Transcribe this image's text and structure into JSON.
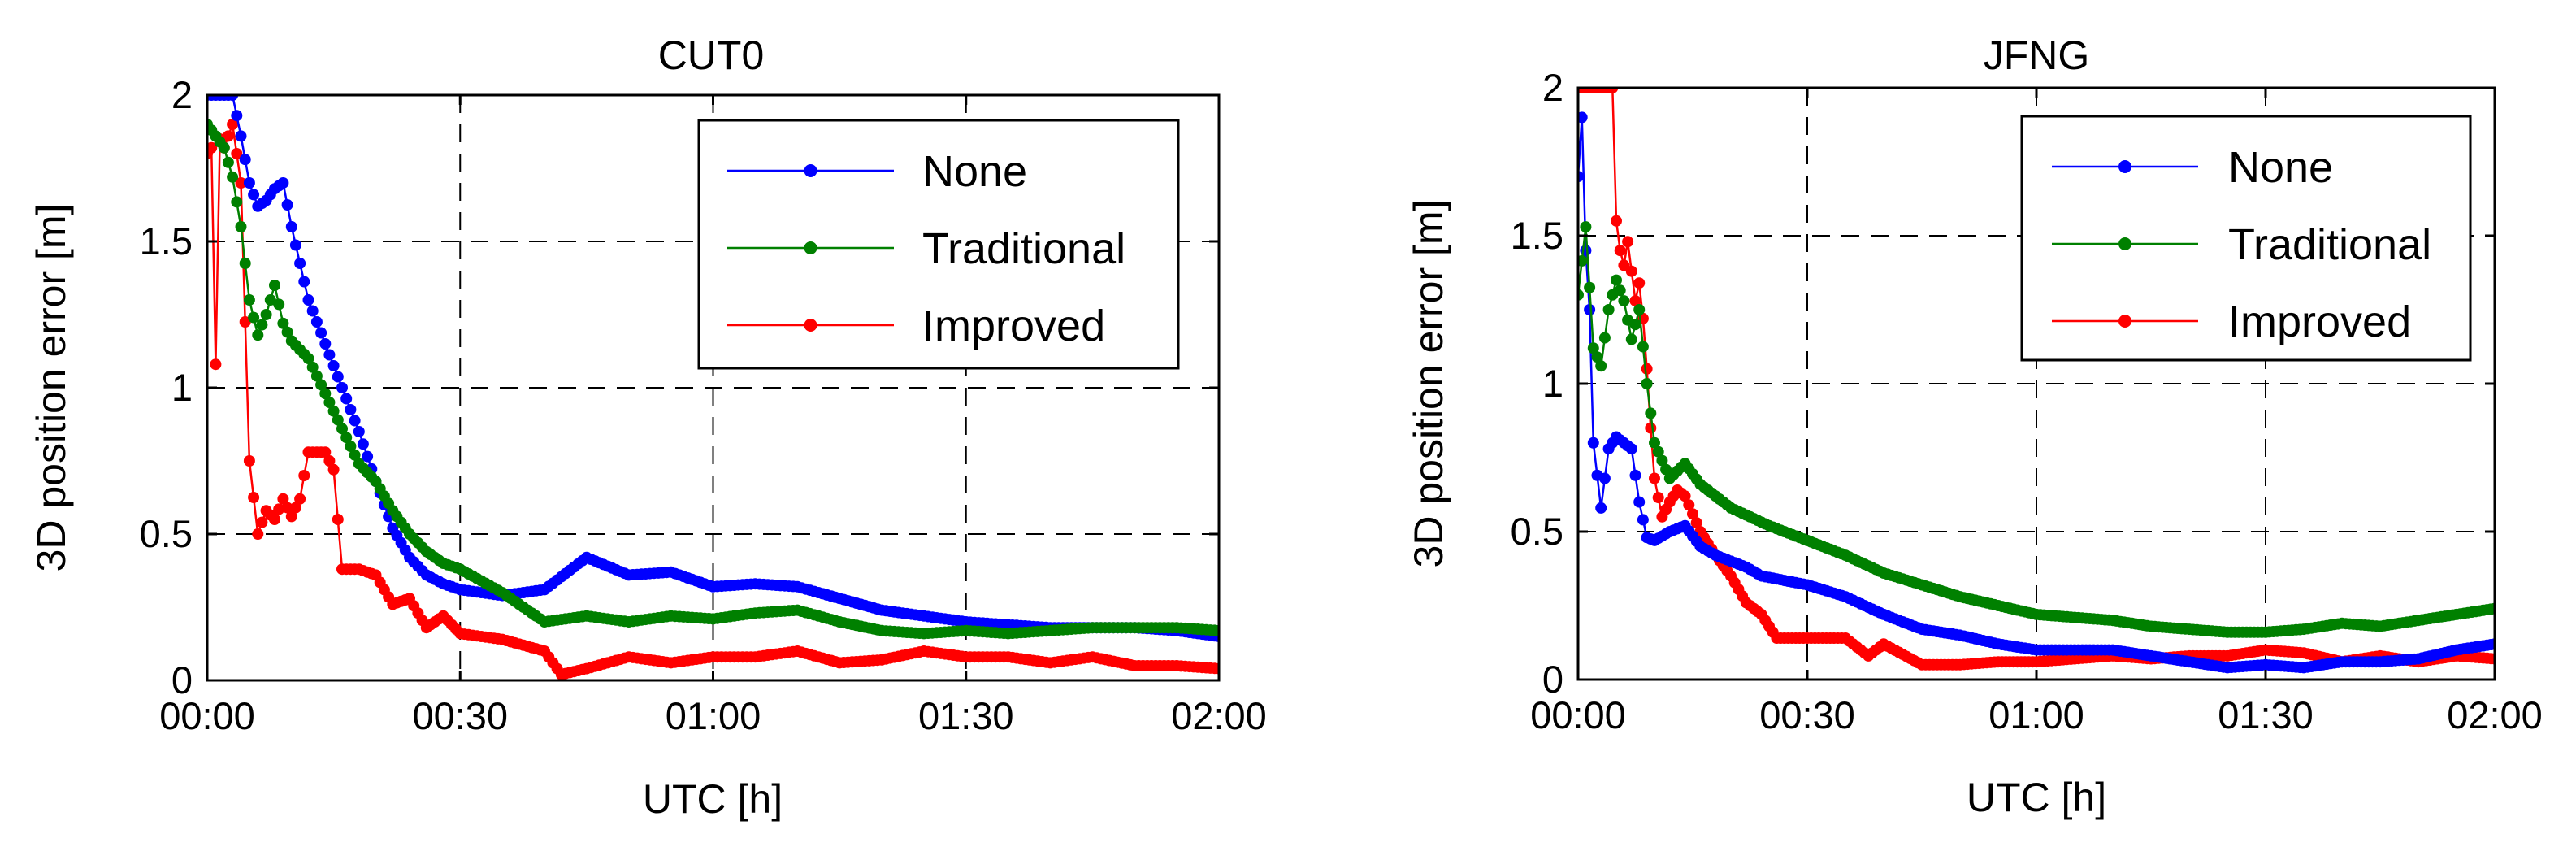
{
  "figure": {
    "background": "#ffffff"
  },
  "chart_data": [
    {
      "type": "line",
      "title": "CUT0",
      "xlabel": "UTC [h]",
      "ylabel": "3D position error [m]",
      "xlim": [
        0,
        120
      ],
      "ylim": [
        0,
        2
      ],
      "xticks": [
        0,
        30,
        60,
        90,
        120
      ],
      "xtick_labels": [
        "00:00",
        "00:30",
        "01:00",
        "01:30",
        "02:00"
      ],
      "yticks": [
        0,
        0.5,
        1,
        1.5,
        2
      ],
      "ytick_labels": [
        "0",
        "0.5",
        "1",
        "1.5",
        "2"
      ],
      "grid": true,
      "legend_position": "top-right",
      "series": [
        {
          "name": "None",
          "color": "#0000ff",
          "x": [
            0,
            1,
            2,
            3,
            4,
            5,
            6,
            7,
            8,
            9,
            10,
            12,
            14,
            16,
            18,
            20,
            22,
            24,
            26,
            28,
            30,
            35,
            40,
            45,
            50,
            55,
            60,
            65,
            70,
            75,
            80,
            85,
            90,
            95,
            100,
            105,
            110,
            115,
            120
          ],
          "y": [
            2.0,
            2.0,
            2.0,
            2.0,
            1.86,
            1.7,
            1.62,
            1.64,
            1.68,
            1.7,
            1.55,
            1.3,
            1.15,
            1.0,
            0.85,
            0.68,
            0.52,
            0.42,
            0.36,
            0.33,
            0.31,
            0.29,
            0.31,
            0.42,
            0.36,
            0.37,
            0.32,
            0.33,
            0.32,
            0.28,
            0.24,
            0.22,
            0.2,
            0.19,
            0.18,
            0.18,
            0.18,
            0.17,
            0.15
          ]
        },
        {
          "name": "Traditional",
          "color": "#008000",
          "x": [
            0,
            1,
            2,
            3,
            4,
            5,
            6,
            7,
            8,
            9,
            10,
            12,
            14,
            16,
            18,
            20,
            22,
            24,
            26,
            28,
            30,
            35,
            40,
            45,
            50,
            55,
            60,
            65,
            70,
            75,
            80,
            85,
            90,
            95,
            100,
            105,
            110,
            115,
            120
          ],
          "y": [
            1.9,
            1.86,
            1.82,
            1.72,
            1.55,
            1.3,
            1.18,
            1.25,
            1.35,
            1.22,
            1.16,
            1.1,
            0.98,
            0.86,
            0.74,
            0.68,
            0.58,
            0.5,
            0.44,
            0.4,
            0.38,
            0.3,
            0.2,
            0.22,
            0.2,
            0.22,
            0.21,
            0.23,
            0.24,
            0.2,
            0.17,
            0.16,
            0.17,
            0.16,
            0.17,
            0.18,
            0.18,
            0.18,
            0.17
          ]
        },
        {
          "name": "Improved",
          "color": "#ff0000",
          "x": [
            0,
            0.5,
            1,
            1.5,
            2,
            3,
            4,
            5,
            6,
            7,
            8,
            9,
            10,
            11,
            12,
            13,
            14,
            15,
            16,
            18,
            20,
            22,
            24,
            26,
            28,
            30,
            35,
            40,
            42,
            45,
            50,
            55,
            60,
            65,
            70,
            75,
            80,
            85,
            90,
            95,
            100,
            105,
            110,
            115,
            120
          ],
          "y": [
            1.8,
            1.82,
            1.08,
            1.85,
            1.82,
            1.9,
            1.7,
            0.75,
            0.5,
            0.58,
            0.55,
            0.62,
            0.56,
            0.62,
            0.78,
            0.78,
            0.78,
            0.72,
            0.38,
            0.38,
            0.36,
            0.26,
            0.28,
            0.18,
            0.22,
            0.16,
            0.14,
            0.1,
            0.02,
            0.04,
            0.08,
            0.06,
            0.08,
            0.08,
            0.1,
            0.06,
            0.07,
            0.1,
            0.08,
            0.08,
            0.06,
            0.08,
            0.05,
            0.05,
            0.04
          ]
        }
      ]
    },
    {
      "type": "line",
      "title": "JFNG",
      "xlabel": "UTC [h]",
      "ylabel": "3D position error [m]",
      "xlim": [
        0,
        120
      ],
      "ylim": [
        0,
        2
      ],
      "xticks": [
        0,
        30,
        60,
        90,
        120
      ],
      "xtick_labels": [
        "00:00",
        "00:30",
        "01:00",
        "01:30",
        "02:00"
      ],
      "yticks": [
        0,
        0.5,
        1,
        1.5,
        2
      ],
      "ytick_labels": [
        "0",
        "0.5",
        "1",
        "1.5",
        "2"
      ],
      "grid": true,
      "legend_position": "top-right",
      "series": [
        {
          "name": "None",
          "color": "#0000ff",
          "x": [
            0,
            0.5,
            1,
            1.5,
            2,
            3,
            4,
            5,
            6,
            7,
            8,
            9,
            10,
            12,
            14,
            16,
            18,
            20,
            22,
            24,
            26,
            28,
            30,
            35,
            40,
            45,
            50,
            55,
            60,
            65,
            70,
            75,
            80,
            85,
            90,
            95,
            100,
            105,
            110,
            115,
            120
          ],
          "y": [
            1.7,
            1.9,
            1.45,
            1.25,
            0.8,
            0.58,
            0.78,
            0.82,
            0.8,
            0.78,
            0.6,
            0.48,
            0.47,
            0.5,
            0.52,
            0.45,
            0.42,
            0.4,
            0.38,
            0.35,
            0.34,
            0.33,
            0.32,
            0.28,
            0.22,
            0.17,
            0.15,
            0.12,
            0.1,
            0.1,
            0.1,
            0.08,
            0.06,
            0.04,
            0.05,
            0.04,
            0.06,
            0.06,
            0.07,
            0.1,
            0.12
          ]
        },
        {
          "name": "Traditional",
          "color": "#008000",
          "x": [
            0,
            1,
            2,
            3,
            4,
            5,
            6,
            7,
            8,
            9,
            10,
            12,
            14,
            16,
            18,
            20,
            25,
            30,
            35,
            40,
            45,
            50,
            55,
            60,
            65,
            70,
            75,
            80,
            85,
            90,
            95,
            100,
            105,
            110,
            115,
            120
          ],
          "y": [
            1.3,
            1.53,
            1.12,
            1.06,
            1.25,
            1.35,
            1.28,
            1.15,
            1.25,
            1.0,
            0.8,
            0.68,
            0.73,
            0.66,
            0.62,
            0.58,
            0.52,
            0.47,
            0.42,
            0.36,
            0.32,
            0.28,
            0.25,
            0.22,
            0.21,
            0.2,
            0.18,
            0.17,
            0.16,
            0.16,
            0.17,
            0.19,
            0.18,
            0.2,
            0.22,
            0.24
          ]
        },
        {
          "name": "Improved",
          "color": "#ff0000",
          "x": [
            0,
            0.5,
            1,
            1.5,
            2,
            3,
            4,
            4.5,
            5,
            5.5,
            6,
            6.5,
            7,
            7.5,
            8,
            8.5,
            9,
            9.5,
            10,
            11,
            12,
            13,
            14,
            16,
            18,
            20,
            22,
            24,
            26,
            30,
            35,
            38,
            40,
            45,
            50,
            55,
            60,
            65,
            70,
            75,
            80,
            85,
            90,
            95,
            100,
            105,
            110,
            115,
            120
          ],
          "y": [
            2.0,
            2.0,
            2.0,
            2.0,
            2.0,
            2.0,
            2.0,
            2.0,
            1.55,
            1.45,
            1.4,
            1.48,
            1.38,
            1.28,
            1.34,
            1.22,
            1.05,
            0.85,
            0.68,
            0.55,
            0.6,
            0.64,
            0.62,
            0.5,
            0.42,
            0.35,
            0.26,
            0.22,
            0.14,
            0.14,
            0.14,
            0.08,
            0.12,
            0.05,
            0.05,
            0.06,
            0.06,
            0.07,
            0.08,
            0.07,
            0.08,
            0.08,
            0.1,
            0.09,
            0.06,
            0.08,
            0.06,
            0.08,
            0.07
          ]
        }
      ]
    }
  ]
}
